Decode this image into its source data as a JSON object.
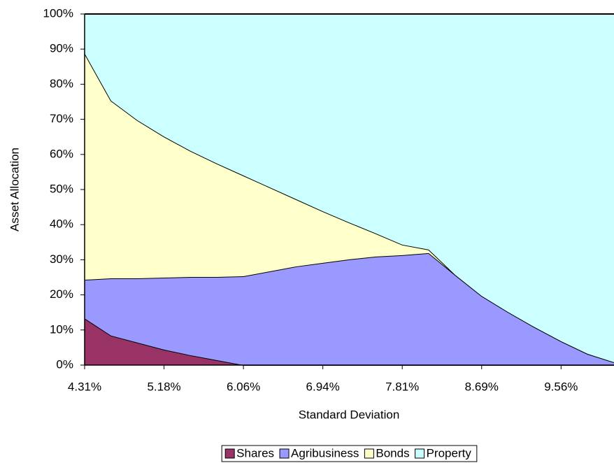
{
  "chart_data": {
    "type": "stacked_area",
    "x_label": "Standard Deviation",
    "y_label": "Asset Allocation",
    "categories": [
      "4.31%",
      null,
      null,
      "5.18%",
      null,
      null,
      "6.06%",
      null,
      null,
      "6.94%",
      null,
      null,
      "7.81%",
      null,
      null,
      "8.69%",
      null,
      null,
      "9.56%",
      null,
      null
    ],
    "series": [
      {
        "name": "Shares",
        "color": "#993366",
        "values": [
          13.3,
          8.4,
          6.4,
          4.4,
          2.8,
          1.4,
          0,
          0,
          0,
          0,
          0,
          0,
          0,
          0,
          0,
          0,
          0,
          0,
          0,
          0,
          0
        ]
      },
      {
        "name": "Agribusiness",
        "color": "#9999ff",
        "values": [
          11.0,
          16.3,
          18.3,
          20.5,
          22.3,
          23.7,
          25.3,
          26.7,
          28.1,
          29.1,
          30.1,
          30.9,
          31.3,
          31.9,
          25.7,
          19.7,
          15.1,
          10.8,
          6.8,
          3.2,
          0.8
        ]
      },
      {
        "name": "Bonds",
        "color": "#ffffcc",
        "values": [
          64.5,
          50.6,
          45.0,
          40.2,
          35.9,
          32.3,
          28.7,
          23.9,
          19.1,
          14.7,
          10.5,
          6.6,
          3.0,
          1.0,
          0,
          0,
          0,
          0,
          0,
          0,
          0
        ]
      },
      {
        "name": "Property",
        "color": "#ccffff",
        "values": [
          11.2,
          24.7,
          30.3,
          34.9,
          39.0,
          42.6,
          46.0,
          49.4,
          52.8,
          56.2,
          59.4,
          62.5,
          65.7,
          67.1,
          74.3,
          80.3,
          84.9,
          89.2,
          93.2,
          96.8,
          99.2
        ]
      }
    ],
    "ylim": [
      0,
      100
    ],
    "yticks": [
      {
        "value": 0,
        "label": "0%"
      },
      {
        "value": 10,
        "label": "10%"
      },
      {
        "value": 20,
        "label": "20%"
      },
      {
        "value": 30,
        "label": "30%"
      },
      {
        "value": 40,
        "label": "40%"
      },
      {
        "value": 50,
        "label": "50%"
      },
      {
        "value": 60,
        "label": "60%"
      },
      {
        "value": 70,
        "label": "70%"
      },
      {
        "value": 80,
        "label": "80%"
      },
      {
        "value": 90,
        "label": "90%"
      },
      {
        "value": 100,
        "label": "100%"
      }
    ],
    "legend": "bottom"
  }
}
